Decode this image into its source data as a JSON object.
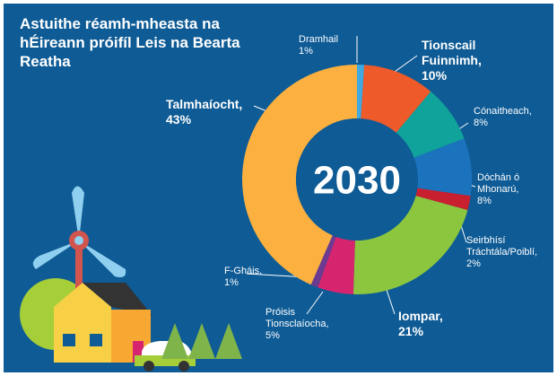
{
  "chart_data": {
    "type": "donut",
    "title": "Astuithe réamh-mheasta na hÉireann próifíl Leis na Bearta Reatha",
    "center_label": "2030",
    "categories": [
      "Dramhail",
      "Tionscail Fuinnimh,",
      "Cónaitheach,",
      "Dóchán ó Mhonarú,",
      "Seirbhísí Tráchtála/Poiblí,",
      "Iompar,",
      "Próisis Tionsclaíocha,",
      "F-Gháis,",
      "Talmhaíocht,"
    ],
    "values": [
      1,
      10,
      8,
      8,
      2,
      21,
      5,
      1,
      43
    ],
    "value_labels": [
      "1%",
      "10%",
      "8%",
      "8%",
      "2%",
      "21%",
      "5%",
      "1%",
      "43%"
    ],
    "colors": [
      "#3fa9e0",
      "#ef5a2b",
      "#10a39b",
      "#1c73bd",
      "#c9202f",
      "#8cc63f",
      "#d7246f",
      "#6c3a90",
      "#fbb03f"
    ]
  }
}
